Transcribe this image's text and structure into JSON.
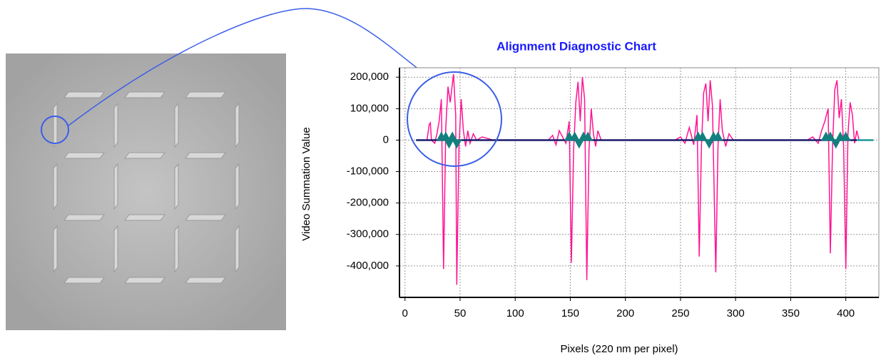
{
  "chart_data": {
    "type": "line",
    "title": "Alignment Diagnostic Chart",
    "x_label": "Pixels (220 nm per pixel)",
    "y_label": "Video Summation Value",
    "xlim": [
      -5,
      430
    ],
    "ylim": [
      -500000,
      230000
    ],
    "xticks": [
      0,
      50,
      100,
      150,
      200,
      250,
      300,
      350,
      400
    ],
    "yticks": [
      {
        "value": 200000,
        "label": "200,000"
      },
      {
        "value": 100000,
        "label": "100,000"
      },
      0,
      {
        "value": -100000,
        "label": "-100,000"
      },
      {
        "value": -200000,
        "label": "-200,000"
      },
      {
        "value": -300000,
        "label": "-300,000"
      },
      {
        "value": -400000,
        "label": "-400,000"
      }
    ],
    "grid": true,
    "series": [
      {
        "color": "#ff1493",
        "x": [
          18,
          20,
          22,
          23,
          24,
          27,
          29,
          31,
          33,
          35,
          37,
          39,
          41,
          43,
          44,
          46,
          47,
          49,
          51,
          53,
          55,
          57,
          59,
          62,
          65,
          70,
          75,
          80,
          130,
          134,
          137,
          140,
          143,
          146,
          149,
          151,
          153,
          155,
          157,
          159,
          161,
          163,
          165,
          167,
          169,
          171,
          173,
          175,
          178,
          245,
          250,
          254,
          258,
          262,
          265,
          267,
          269,
          271,
          273,
          275,
          277,
          279,
          282,
          284,
          286,
          288,
          291,
          294,
          298,
          365,
          370,
          375,
          378,
          381,
          384,
          386,
          388,
          390,
          392,
          394,
          396,
          398,
          400,
          402,
          404,
          406,
          408,
          410,
          412
        ],
        "values": [
          0,
          0,
          50000,
          55000,
          0,
          -10000,
          20000,
          60000,
          130000,
          -410000,
          40000,
          170000,
          120000,
          180000,
          210000,
          80000,
          -460000,
          -20000,
          130000,
          30000,
          -20000,
          30000,
          -10000,
          20000,
          0,
          10000,
          5000,
          0,
          0,
          15000,
          -15000,
          30000,
          10000,
          -10000,
          60000,
          -390000,
          -30000,
          120000,
          185000,
          60000,
          200000,
          130000,
          -445000,
          -30000,
          100000,
          20000,
          -20000,
          30000,
          0,
          0,
          10000,
          -10000,
          40000,
          -15000,
          80000,
          -370000,
          -20000,
          150000,
          180000,
          60000,
          190000,
          110000,
          -420000,
          -20000,
          130000,
          30000,
          -20000,
          20000,
          0,
          0,
          10000,
          -10000,
          30000,
          60000,
          100000,
          -360000,
          -20000,
          160000,
          190000,
          70000,
          130000,
          -20000,
          -410000,
          20000,
          120000,
          80000,
          -10000,
          30000,
          0
        ]
      },
      {
        "color": "#1a1a6e",
        "x": [
          10,
          410
        ],
        "values": [
          0,
          0
        ]
      },
      {
        "color": "#1a9a9a",
        "x": [
          410,
          425
        ],
        "values": [
          0,
          0
        ]
      },
      {
        "color": "#137f7f",
        "marker": "triangle",
        "x": [
          33,
          37,
          40,
          43,
          47,
          149,
          154,
          158,
          162,
          166,
          266,
          270,
          276,
          280,
          284,
          382,
          386,
          391,
          395,
          400
        ],
        "values": [
          8000,
          8000,
          -8000,
          8000,
          -8000,
          8000,
          8000,
          -8000,
          8000,
          8000,
          8000,
          8000,
          -8000,
          8000,
          8000,
          8000,
          8000,
          -8000,
          8000,
          8000
        ]
      }
    ]
  }
}
